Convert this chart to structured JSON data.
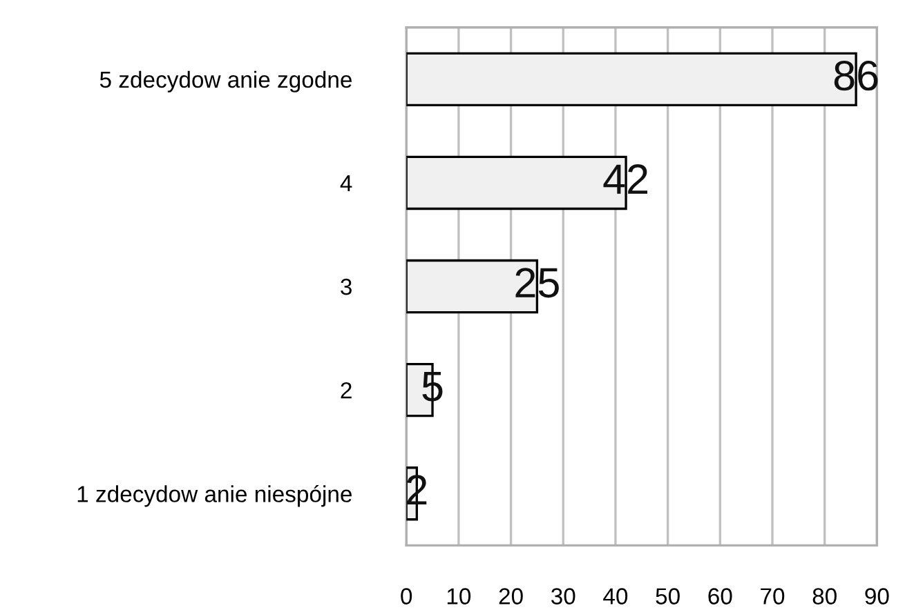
{
  "chart_data": {
    "type": "bar",
    "orientation": "horizontal",
    "categories": [
      "5 zdecydow anie zgodne",
      "4",
      "3",
      "2",
      "1 zdecydow anie niespójne"
    ],
    "values": [
      86,
      42,
      25,
      5,
      2
    ],
    "color": "#f0f0f0",
    "xlim": [
      0,
      90
    ],
    "xticks": [
      0,
      10,
      20,
      30,
      40,
      50,
      60,
      70,
      80,
      90
    ],
    "grid": "x",
    "data_labels": true
  }
}
